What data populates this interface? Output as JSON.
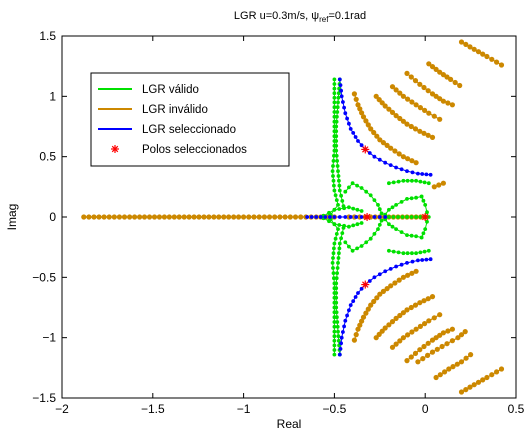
{
  "chart_data": {
    "type": "scatter",
    "title": {
      "prefix": "LGR u=0.3m/s, ",
      "psi": "ψ",
      "subscript": "ref",
      "suffix": "=0.1rad"
    },
    "xlabel": "Real",
    "ylabel": "Imag",
    "xlim": [
      -2,
      0.5
    ],
    "ylim": [
      -1.5,
      1.5
    ],
    "x_ticks": [
      -2,
      -1.5,
      -1,
      -0.5,
      0,
      0.5
    ],
    "x_tick_labels": [
      "−2",
      "−1.5",
      "−1",
      "−0.5",
      "0",
      "0.5"
    ],
    "y_ticks": [
      -1.5,
      -1,
      -0.5,
      0,
      0.5,
      1,
      1.5
    ],
    "y_tick_labels": [
      "−1.5",
      "−1",
      "−0.5",
      "0",
      "0.5",
      "1",
      "1.5"
    ],
    "grid": false,
    "legend_position": "top-left",
    "legend": [
      {
        "label": "LGR válido",
        "color": "#00e000",
        "marker": "line"
      },
      {
        "label": "LGR inválido",
        "color": "#cc8800",
        "marker": "line"
      },
      {
        "label": "LGR seleccionado",
        "color": "#0000ff",
        "marker": "line"
      },
      {
        "label": "Polos seleccionados",
        "color": "#ff0000",
        "marker": "star"
      }
    ],
    "colors": {
      "valido": "#00e000",
      "invalido": "#cc8800",
      "seleccionado": "#0000ff",
      "polos": "#ff0000"
    },
    "series": [
      {
        "kind": "invalido",
        "points": [
          [
            -1.88,
            0
          ],
          [
            -1.6,
            0
          ],
          [
            -1.3,
            0
          ],
          [
            -1.0,
            0
          ],
          [
            -0.8,
            0
          ],
          [
            -0.6,
            0
          ],
          [
            -0.5,
            0
          ]
        ]
      },
      {
        "kind": "invalido",
        "points": [
          [
            -0.42,
            0
          ],
          [
            -0.3,
            0
          ],
          [
            -0.2,
            0
          ],
          [
            -0.1,
            0
          ],
          [
            0,
            0
          ]
        ]
      },
      {
        "kind": "invalido",
        "points": [
          [
            -0.39,
            1.02
          ],
          [
            -0.37,
            0.93
          ],
          [
            -0.34,
            0.83
          ],
          [
            -0.3,
            0.73
          ],
          [
            -0.25,
            0.64
          ],
          [
            -0.19,
            0.57
          ],
          [
            -0.12,
            0.5
          ],
          [
            -0.05,
            0.45
          ]
        ]
      },
      {
        "kind": "invalido",
        "points": [
          [
            -0.27,
            1.0
          ],
          [
            -0.22,
            0.92
          ],
          [
            -0.16,
            0.84
          ],
          [
            -0.1,
            0.77
          ],
          [
            -0.03,
            0.71
          ],
          [
            0.04,
            0.66
          ]
        ]
      },
      {
        "kind": "invalido",
        "points": [
          [
            -0.18,
            1.08
          ],
          [
            -0.12,
            1.0
          ],
          [
            -0.05,
            0.93
          ],
          [
            0.02,
            0.86
          ],
          [
            0.08,
            0.81
          ]
        ]
      },
      {
        "kind": "invalido",
        "points": [
          [
            -0.1,
            1.19
          ],
          [
            -0.03,
            1.1
          ],
          [
            0.04,
            1.02
          ],
          [
            0.1,
            0.96
          ],
          [
            0.15,
            0.93
          ]
        ]
      },
      {
        "kind": "invalido",
        "points": [
          [
            0.02,
            1.27
          ],
          [
            0.08,
            1.2
          ],
          [
            0.14,
            1.14
          ],
          [
            0.19,
            1.09
          ]
        ]
      },
      {
        "kind": "invalido",
        "points": [
          [
            0.2,
            1.45
          ],
          [
            0.27,
            1.39
          ],
          [
            0.34,
            1.33
          ],
          [
            0.42,
            1.26
          ]
        ]
      },
      {
        "kind": "invalido",
        "points": [
          [
            0.05,
            0.25
          ],
          [
            0.1,
            0.28
          ]
        ]
      },
      {
        "kind": "invalido",
        "points": [
          [
            -0.39,
            -1.02
          ],
          [
            -0.37,
            -0.93
          ],
          [
            -0.34,
            -0.83
          ],
          [
            -0.3,
            -0.73
          ],
          [
            -0.25,
            -0.64
          ],
          [
            -0.19,
            -0.57
          ],
          [
            -0.12,
            -0.5
          ],
          [
            -0.05,
            -0.45
          ]
        ]
      },
      {
        "kind": "invalido",
        "points": [
          [
            -0.27,
            -1.0
          ],
          [
            -0.22,
            -0.92
          ],
          [
            -0.16,
            -0.84
          ],
          [
            -0.1,
            -0.77
          ],
          [
            -0.03,
            -0.71
          ],
          [
            0.04,
            -0.66
          ]
        ]
      },
      {
        "kind": "invalido",
        "points": [
          [
            -0.18,
            -1.08
          ],
          [
            -0.12,
            -1.0
          ],
          [
            -0.05,
            -0.93
          ],
          [
            0.02,
            -0.86
          ],
          [
            0.08,
            -0.81
          ]
        ]
      },
      {
        "kind": "invalido",
        "points": [
          [
            -0.1,
            -1.19
          ],
          [
            -0.03,
            -1.1
          ],
          [
            0.04,
            -1.02
          ],
          [
            0.1,
            -0.96
          ],
          [
            0.15,
            -0.93
          ]
        ]
      },
      {
        "kind": "invalido",
        "points": [
          [
            -0.04,
            -1.2
          ],
          [
            0.04,
            -1.12
          ],
          [
            0.12,
            -1.05
          ],
          [
            0.18,
            -1.0
          ],
          [
            0.22,
            -0.95
          ]
        ]
      },
      {
        "kind": "invalido",
        "points": [
          [
            0.06,
            -1.33
          ],
          [
            0.13,
            -1.26
          ],
          [
            0.2,
            -1.2
          ],
          [
            0.25,
            -1.14
          ]
        ]
      },
      {
        "kind": "invalido",
        "points": [
          [
            0.2,
            -1.45
          ],
          [
            0.27,
            -1.39
          ],
          [
            0.34,
            -1.33
          ],
          [
            0.42,
            -1.26
          ]
        ]
      },
      {
        "kind": "valido",
        "points": [
          [
            -0.5,
            1.14
          ],
          [
            -0.5,
            0.95
          ],
          [
            -0.5,
            0.75
          ],
          [
            -0.5,
            0.55
          ],
          [
            -0.51,
            0.38
          ],
          [
            -0.5,
            0.22
          ],
          [
            -0.48,
            0.1
          ],
          [
            -0.52,
            0.02
          ],
          [
            -0.56,
            0.01
          ]
        ]
      },
      {
        "kind": "valido",
        "points": [
          [
            -0.47,
            1.14
          ],
          [
            -0.48,
            0.95
          ],
          [
            -0.49,
            0.75
          ],
          [
            -0.49,
            0.55
          ],
          [
            -0.48,
            0.38
          ],
          [
            -0.47,
            0.22
          ],
          [
            -0.45,
            0.09
          ]
        ]
      },
      {
        "kind": "valido",
        "points": [
          [
            -0.5,
            -1.14
          ],
          [
            -0.5,
            -0.95
          ],
          [
            -0.5,
            -0.75
          ],
          [
            -0.5,
            -0.55
          ],
          [
            -0.51,
            -0.38
          ],
          [
            -0.5,
            -0.22
          ],
          [
            -0.48,
            -0.1
          ],
          [
            -0.52,
            -0.02
          ],
          [
            -0.56,
            -0.01
          ]
        ]
      },
      {
        "kind": "valido",
        "points": [
          [
            -0.47,
            -1.14
          ],
          [
            -0.48,
            -0.95
          ],
          [
            -0.49,
            -0.75
          ],
          [
            -0.49,
            -0.55
          ],
          [
            -0.48,
            -0.38
          ],
          [
            -0.47,
            -0.22
          ],
          [
            -0.45,
            -0.09
          ]
        ]
      },
      {
        "kind": "valido",
        "points": [
          [
            -0.44,
            0.21
          ],
          [
            -0.4,
            0.28
          ],
          [
            -0.35,
            0.24
          ],
          [
            -0.3,
            0.18
          ],
          [
            -0.26,
            0.1
          ],
          [
            -0.24,
            0.03
          ]
        ]
      },
      {
        "kind": "valido",
        "points": [
          [
            -0.44,
            -0.21
          ],
          [
            -0.4,
            -0.28
          ],
          [
            -0.35,
            -0.24
          ],
          [
            -0.3,
            -0.18
          ],
          [
            -0.26,
            -0.1
          ],
          [
            -0.24,
            -0.03
          ]
        ]
      },
      {
        "kind": "valido",
        "points": [
          [
            -0.22,
            0.02
          ],
          [
            -0.2,
            0.06
          ],
          [
            -0.16,
            0.1
          ],
          [
            -0.1,
            0.15
          ],
          [
            -0.05,
            0.16
          ],
          [
            -0.02,
            0.17
          ]
        ]
      },
      {
        "kind": "valido",
        "points": [
          [
            -0.22,
            -0.02
          ],
          [
            -0.2,
            -0.06
          ],
          [
            -0.16,
            -0.1
          ],
          [
            -0.1,
            -0.15
          ],
          [
            -0.05,
            -0.16
          ],
          [
            -0.02,
            -0.17
          ]
        ]
      },
      {
        "kind": "valido",
        "points": [
          [
            -0.02,
            0.17
          ],
          [
            0.0,
            0.1
          ],
          [
            0.01,
            0.04
          ]
        ]
      },
      {
        "kind": "valido",
        "points": [
          [
            -0.02,
            -0.17
          ],
          [
            0.0,
            -0.1
          ],
          [
            0.01,
            -0.04
          ]
        ]
      },
      {
        "kind": "valido",
        "points": [
          [
            -0.56,
            0.01
          ],
          [
            -0.5,
            0.06
          ],
          [
            -0.42,
            0.08
          ],
          [
            -0.35,
            0.05
          ]
        ]
      },
      {
        "kind": "valido",
        "points": [
          [
            -0.56,
            -0.01
          ],
          [
            -0.5,
            -0.06
          ],
          [
            -0.42,
            -0.08
          ],
          [
            -0.35,
            -0.05
          ]
        ]
      },
      {
        "kind": "valido",
        "points": [
          [
            -0.2,
            0.28
          ],
          [
            -0.12,
            0.3
          ],
          [
            -0.05,
            0.3
          ],
          [
            0.02,
            0.28
          ]
        ]
      },
      {
        "kind": "valido",
        "points": [
          [
            -0.2,
            -0.28
          ],
          [
            -0.12,
            -0.3
          ],
          [
            -0.05,
            -0.3
          ],
          [
            0.02,
            -0.28
          ]
        ]
      },
      {
        "kind": "valido",
        "points": [
          [
            -0.2,
            0
          ],
          [
            -0.1,
            0
          ],
          [
            -0.05,
            0
          ],
          [
            0.02,
            0
          ]
        ]
      },
      {
        "kind": "seleccionado",
        "points": [
          [
            -0.47,
            1.14
          ],
          [
            -0.46,
            1.0
          ],
          [
            -0.44,
            0.86
          ],
          [
            -0.41,
            0.73
          ],
          [
            -0.37,
            0.63
          ],
          [
            -0.33,
            0.56
          ],
          [
            -0.28,
            0.5
          ],
          [
            -0.22,
            0.45
          ],
          [
            -0.16,
            0.41
          ],
          [
            -0.1,
            0.38
          ],
          [
            -0.04,
            0.36
          ],
          [
            0.03,
            0.35
          ]
        ]
      },
      {
        "kind": "seleccionado",
        "points": [
          [
            -0.47,
            -1.14
          ],
          [
            -0.46,
            -1.0
          ],
          [
            -0.44,
            -0.86
          ],
          [
            -0.41,
            -0.73
          ],
          [
            -0.37,
            -0.63
          ],
          [
            -0.33,
            -0.56
          ],
          [
            -0.28,
            -0.5
          ],
          [
            -0.22,
            -0.45
          ],
          [
            -0.16,
            -0.41
          ],
          [
            -0.1,
            -0.38
          ],
          [
            -0.04,
            -0.36
          ],
          [
            0.03,
            -0.35
          ]
        ]
      },
      {
        "kind": "seleccionado",
        "points": [
          [
            -0.65,
            0
          ],
          [
            -0.6,
            0
          ],
          [
            -0.5,
            0
          ],
          [
            -0.44,
            0
          ],
          [
            -0.38,
            0
          ],
          [
            -0.32,
            0
          ],
          [
            -0.28,
            0
          ],
          [
            -0.22,
            0
          ]
        ]
      }
    ],
    "selected_poles": [
      [
        -0.33,
        0.56
      ],
      [
        -0.33,
        -0.56
      ],
      [
        -0.32,
        0
      ],
      [
        0,
        0
      ]
    ]
  }
}
